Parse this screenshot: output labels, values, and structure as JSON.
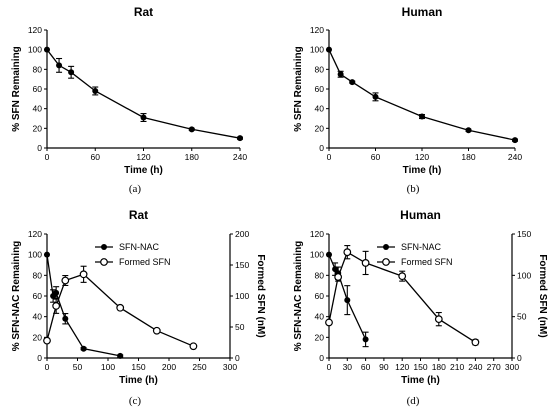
{
  "chart_data": [
    {
      "type": "line",
      "title": "Rat",
      "caption": "(a)",
      "xlabel": "Time (h)",
      "ylabel": "% SFN Remaining",
      "xlim": [
        0,
        240
      ],
      "ylim": [
        0,
        120
      ],
      "xticks": [
        "0",
        "60",
        "120",
        "180",
        "240"
      ],
      "yticks": [
        "0",
        "20",
        "40",
        "60",
        "80",
        "100",
        "120"
      ],
      "series": [
        {
          "x": [
            0,
            15,
            30,
            60,
            120,
            180,
            240
          ],
          "y": [
            100,
            84,
            77,
            58,
            31,
            19,
            10
          ],
          "err": [
            0,
            7,
            6,
            4,
            4,
            1,
            1
          ],
          "marker": "filled"
        }
      ]
    },
    {
      "type": "line",
      "title": "Human",
      "caption": "(b)",
      "xlabel": "Time (h)",
      "ylabel": "% SFN Remaining",
      "xlim": [
        0,
        240
      ],
      "ylim": [
        0,
        120
      ],
      "xticks": [
        "0",
        "60",
        "120",
        "180",
        "240"
      ],
      "yticks": [
        "0",
        "20",
        "40",
        "60",
        "80",
        "100",
        "120"
      ],
      "series": [
        {
          "x": [
            0,
            15,
            30,
            60,
            120,
            180,
            240
          ],
          "y": [
            100,
            75,
            67,
            52,
            32,
            18,
            8
          ],
          "err": [
            0,
            3,
            1,
            4,
            2,
            1,
            1
          ],
          "marker": "filled"
        }
      ]
    },
    {
      "type": "line",
      "title": "Rat",
      "caption": "(c)",
      "xlabel": "Time (h)",
      "ylabel": "% SFN-NAC Remaining",
      "y2label": "Formed SFN (nM)",
      "xlim": [
        0,
        300
      ],
      "ylim": [
        0,
        120
      ],
      "y2lim": [
        0,
        200
      ],
      "xticks": [
        "0",
        "50",
        "100",
        "150",
        "200",
        "250",
        "300"
      ],
      "yticks": [
        "0",
        "20",
        "40",
        "60",
        "80",
        "100",
        "120"
      ],
      "y2ticks": [
        "0",
        "50",
        "100",
        "150",
        "200"
      ],
      "legend": "top-right",
      "series": [
        {
          "name": "SFN-NAC",
          "axis": "left",
          "marker": "filled",
          "x": [
            0,
            10,
            15,
            30,
            60,
            120
          ],
          "y": [
            100,
            60,
            63,
            38,
            9,
            2
          ],
          "err": [
            0,
            6,
            6,
            5,
            1,
            1
          ]
        },
        {
          "name": "Formed SFN",
          "axis": "right",
          "marker": "open",
          "x": [
            0,
            15,
            30,
            60,
            120,
            180,
            240
          ],
          "y": [
            28,
            84,
            125,
            135,
            81,
            44,
            19
          ],
          "err": [
            0,
            12,
            8,
            13,
            3,
            2,
            2
          ]
        }
      ]
    },
    {
      "type": "line",
      "title": "Human",
      "caption": "(d)",
      "xlabel": "Time (h)",
      "ylabel": "% SFN-NAC Remaining",
      "y2label": "Formed SFN (nM)",
      "xlim": [
        0,
        300
      ],
      "ylim": [
        0,
        120
      ],
      "y2lim": [
        0,
        150
      ],
      "xticks": [
        "0",
        "30",
        "60",
        "90",
        "120",
        "150",
        "180",
        "210",
        "240",
        "270",
        "300"
      ],
      "yticks": [
        "0",
        "20",
        "40",
        "60",
        "80",
        "100",
        "120"
      ],
      "y2ticks": [
        "0",
        "50",
        "100",
        "150"
      ],
      "legend": "top-right",
      "series": [
        {
          "name": "SFN-NAC",
          "axis": "left",
          "marker": "filled",
          "x": [
            0,
            10,
            15,
            30,
            60
          ],
          "y": [
            100,
            86,
            82,
            56,
            18
          ],
          "err": [
            0,
            6,
            6,
            14,
            7
          ]
        },
        {
          "name": "Formed SFN",
          "axis": "right",
          "marker": "open",
          "x": [
            0,
            15,
            30,
            60,
            120,
            180,
            240
          ],
          "y": [
            43,
            98,
            128,
            115,
            99,
            47,
            19
          ],
          "err": [
            0,
            5,
            8,
            14,
            6,
            8,
            3
          ]
        }
      ]
    }
  ]
}
